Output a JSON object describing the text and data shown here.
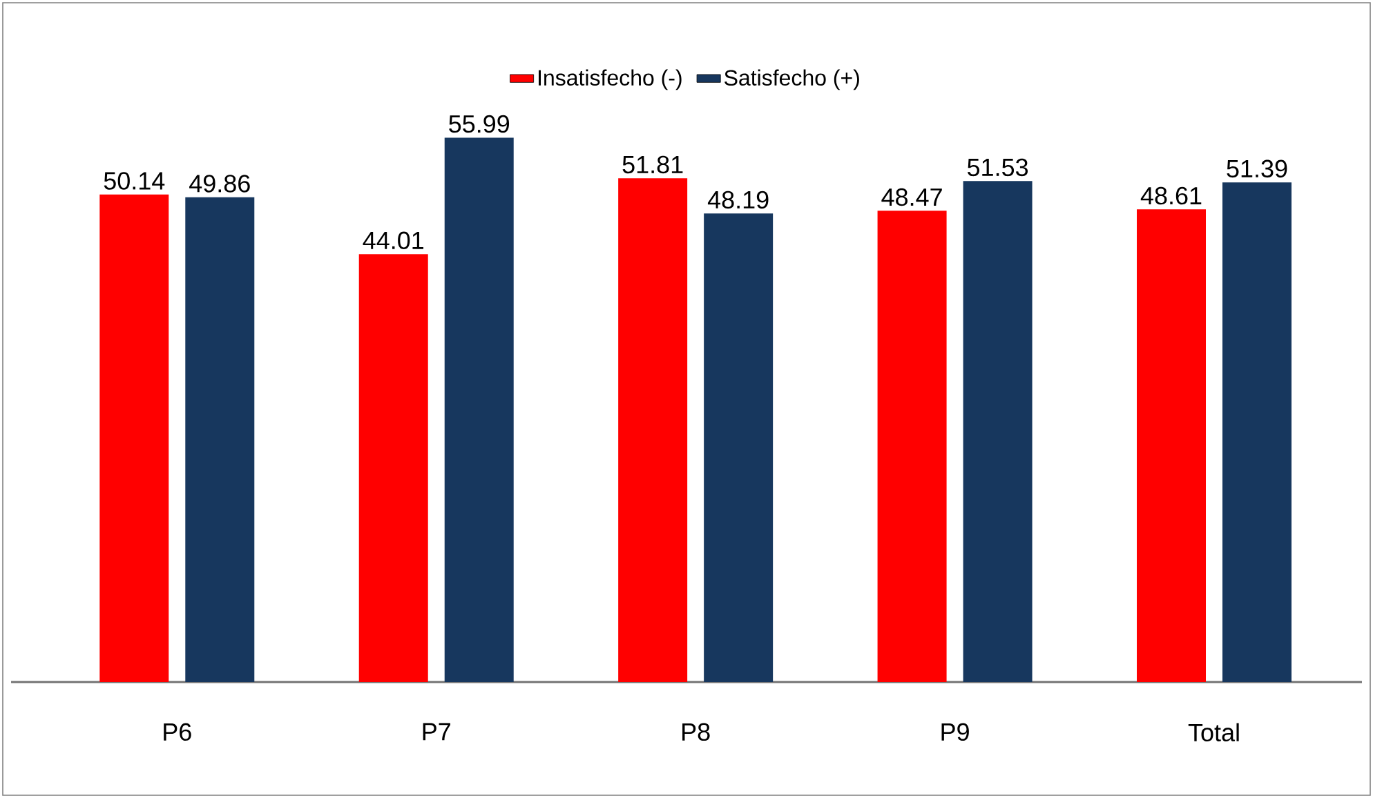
{
  "chart_data": {
    "type": "bar",
    "categories": [
      "P6",
      "P7",
      "P8",
      "P9",
      "Total"
    ],
    "series": [
      {
        "name": "Insatisfecho (-)",
        "color": "#ff0000",
        "values": [
          50.14,
          44.01,
          51.81,
          48.47,
          48.61
        ]
      },
      {
        "name": "Satisfecho (+)",
        "color": "#17375e",
        "values": [
          49.86,
          55.99,
          48.19,
          51.53,
          51.39
        ]
      }
    ],
    "data_labels": true,
    "legend": "top"
  }
}
